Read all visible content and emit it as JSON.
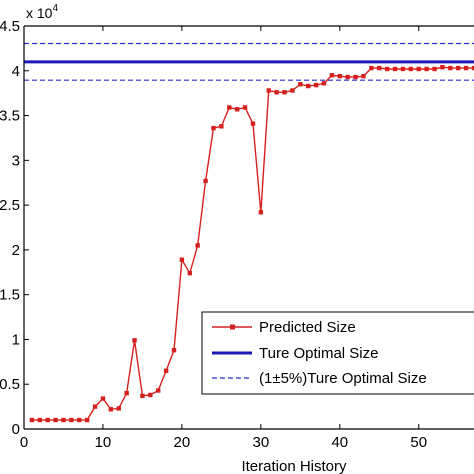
{
  "chart_data": {
    "type": "line",
    "xlabel": "Iteration History",
    "ylabel": "",
    "multiplier_text": "x 10",
    "multiplier_exp": "4",
    "xlim": [
      0,
      57
    ],
    "ylim": [
      0,
      45000
    ],
    "x_ticks": [
      0,
      10,
      20,
      30,
      40,
      50
    ],
    "x_tick_labels": [
      "0",
      "10",
      "20",
      "30",
      "40",
      "50"
    ],
    "y_ticks": [
      0,
      5000,
      10000,
      15000,
      20000,
      25000,
      30000,
      35000,
      40000,
      45000
    ],
    "y_tick_labels": [
      "0",
      "0.5",
      "1",
      "1.5",
      "2",
      "2.5",
      "3",
      "3.5",
      "4",
      "4.5"
    ],
    "grid": false,
    "legend_position": "bottom-right",
    "series": [
      {
        "name": "Predicted Size",
        "color": "#d62020",
        "style": "line-square-markers",
        "x": [
          1,
          2,
          3,
          4,
          5,
          6,
          7,
          8,
          9,
          10,
          11,
          12,
          13,
          14,
          15,
          16,
          17,
          18,
          19,
          20,
          21,
          22,
          23,
          24,
          25,
          26,
          27,
          28,
          29,
          30,
          31,
          32,
          33,
          34,
          35,
          36,
          37,
          38,
          39,
          40,
          41,
          42,
          43,
          44,
          45,
          46,
          47,
          48,
          49,
          50,
          51,
          52,
          53,
          54,
          55,
          56,
          57
        ],
        "y": [
          1000,
          1000,
          1000,
          1000,
          1000,
          1000,
          1000,
          1000,
          2500,
          3400,
          2200,
          2300,
          4000,
          9900,
          3700,
          3800,
          4300,
          6500,
          8800,
          18900,
          17400,
          20500,
          27700,
          33600,
          33800,
          35900,
          35700,
          35900,
          34100,
          24200,
          37800,
          37600,
          37600,
          37800,
          38500,
          38300,
          38400,
          38600,
          39500,
          39400,
          39300,
          39300,
          39400,
          40300,
          40300,
          40200,
          40200,
          40200,
          40200,
          40200,
          40200,
          40200,
          40400,
          40300,
          40300,
          40300,
          40300
        ]
      },
      {
        "name": "Ture Optimal Size",
        "color": "#1a1ab8",
        "style": "solid-thick",
        "constant": 41000
      },
      {
        "name": "(1±5%)Ture Optimal Size",
        "color": "#2a2ad0",
        "style": "dashed",
        "constants": [
          43050,
          38950
        ]
      }
    ]
  }
}
